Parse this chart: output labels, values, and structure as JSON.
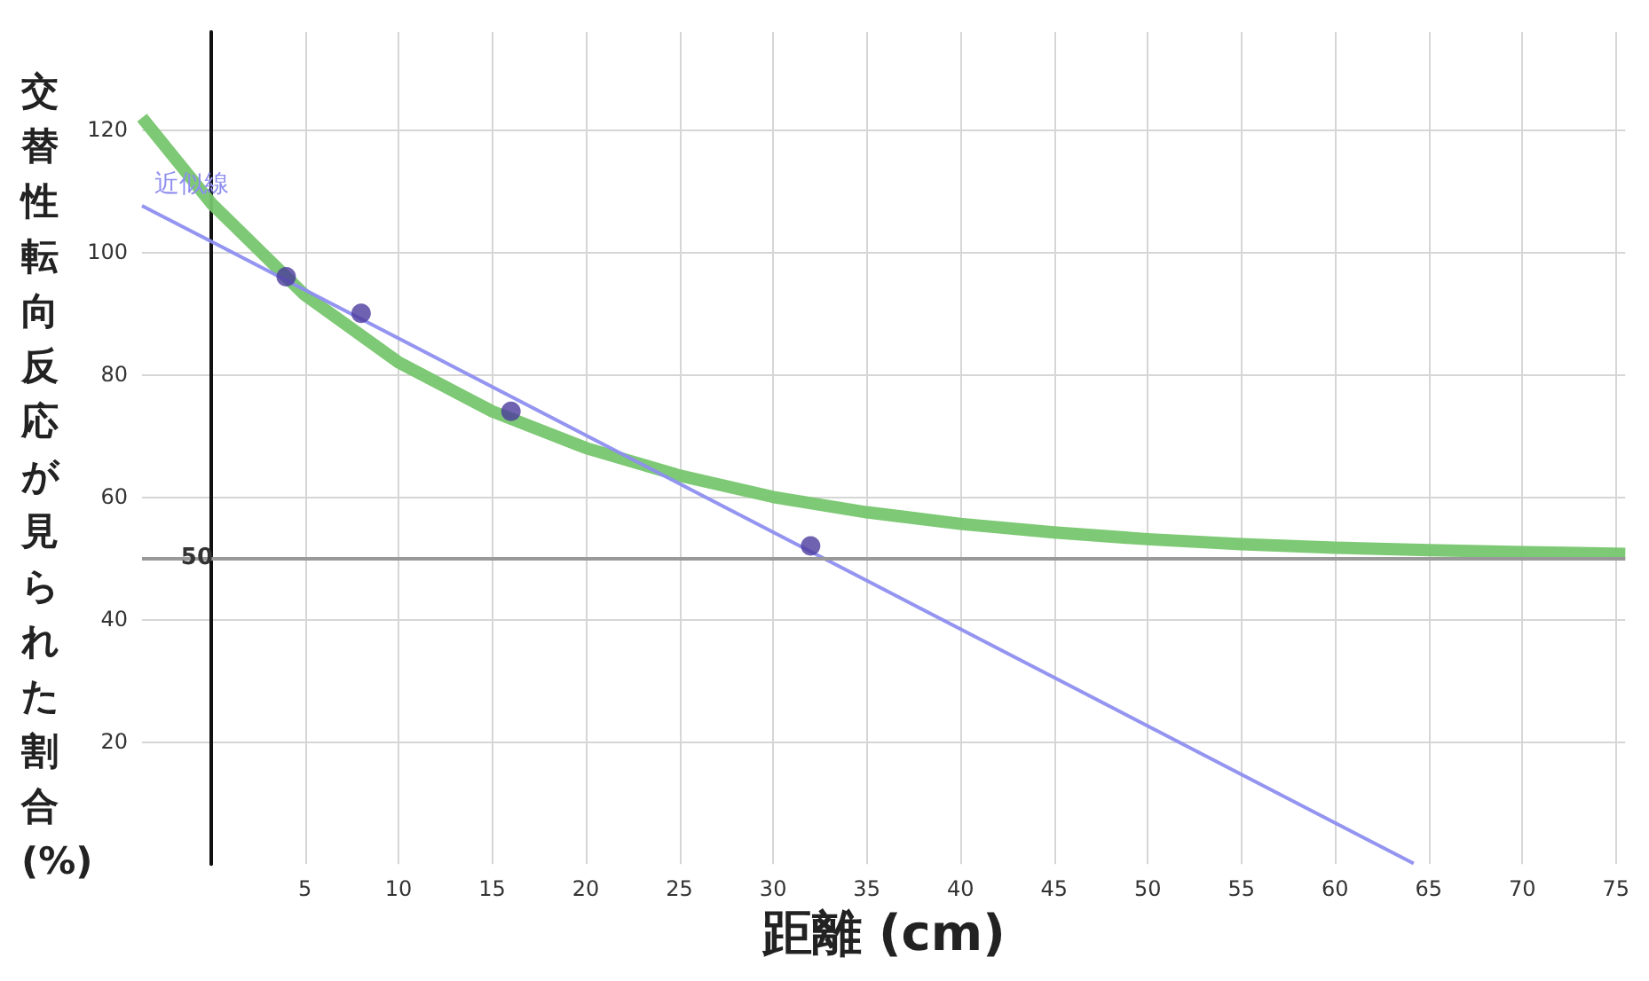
{
  "chart_data": {
    "type": "scatter",
    "xlabel": "距離 (cm)",
    "ylabel": "交替性転向反応が見られた割合(%)",
    "xlim": [
      -3.7,
      75.5
    ],
    "ylim": [
      0,
      136
    ],
    "xticks": [
      5,
      10,
      15,
      20,
      25,
      30,
      35,
      40,
      45,
      50,
      55,
      60,
      65,
      70,
      75
    ],
    "yticks": [
      20,
      40,
      60,
      80,
      100,
      120
    ],
    "grid": true,
    "legend": false,
    "marker": "circle",
    "series": [
      {
        "type": "line",
        "marker": "none",
        "color": "#77c66e",
        "x": [
          -3.7,
          0,
          5,
          10,
          15,
          20,
          25,
          30,
          35,
          40,
          45,
          50,
          55,
          60,
          65,
          70,
          75.5
        ],
        "values": [
          122,
          108,
          93,
          82,
          74,
          68,
          63.5,
          60,
          57.5,
          55.6,
          54.2,
          53.1,
          52.3,
          51.7,
          51.3,
          51,
          50.7
        ]
      },
      {
        "type": "line",
        "marker": "none",
        "name": "近似線",
        "color": "#8e8ef0",
        "x": [
          -3.7,
          64.2
        ],
        "values": [
          107.6,
          0.1
        ]
      },
      {
        "color": "#4b3b9e",
        "x": [
          4,
          8,
          16,
          32
        ],
        "values": [
          96,
          90,
          74,
          52
        ]
      }
    ],
    "ref_lines": [
      {
        "axis": "y",
        "value": 50,
        "label": "50",
        "color": "#999999"
      }
    ]
  }
}
